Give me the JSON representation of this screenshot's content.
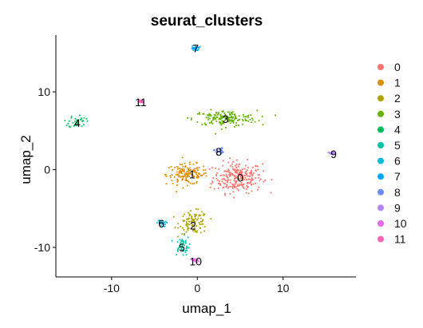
{
  "chart_data": {
    "type": "scatter",
    "title": "seurat_clusters",
    "xlabel": "umap_1",
    "ylabel": "umap_2",
    "xlim": [
      -16.5,
      18.5
    ],
    "ylim": [
      -13.8,
      17.3
    ],
    "xticks": [
      -10,
      0,
      10
    ],
    "yticks": [
      10,
      0,
      -10
    ],
    "xtick_labels": [
      "-10",
      "0",
      "10"
    ],
    "ytick_labels": [
      "10",
      "0",
      "-10"
    ],
    "grid": false,
    "legend_position": "right",
    "series": [
      {
        "name": "0",
        "color": "#F8766D",
        "label_pos": [
          5.0,
          -1.0
        ],
        "center": [
          4.7,
          -1.0
        ],
        "spread": [
          2.6,
          1.8
        ]
      },
      {
        "name": "1",
        "color": "#DB8E00",
        "label_pos": [
          -0.6,
          -0.6
        ],
        "center": [
          -1.2,
          -0.6
        ],
        "spread": [
          2.2,
          1.2
        ]
      },
      {
        "name": "2",
        "color": "#AEA200",
        "label_pos": [
          -0.5,
          -7.2
        ],
        "center": [
          -0.4,
          -6.8
        ],
        "spread": [
          1.5,
          1.3
        ]
      },
      {
        "name": "3",
        "color": "#64B200",
        "label_pos": [
          3.3,
          6.5
        ],
        "center": [
          3.2,
          6.6
        ],
        "spread": [
          3.4,
          0.9
        ]
      },
      {
        "name": "4",
        "color": "#00BD5C",
        "label_pos": [
          -14.0,
          6.0
        ],
        "center": [
          -14.0,
          6.2
        ],
        "spread": [
          0.9,
          0.8
        ]
      },
      {
        "name": "5",
        "color": "#00C1A7",
        "label_pos": [
          -1.8,
          -10.0
        ],
        "center": [
          -1.8,
          -9.8
        ],
        "spread": [
          0.8,
          1.1
        ]
      },
      {
        "name": "6",
        "color": "#00BADE",
        "label_pos": [
          -4.2,
          -6.9
        ],
        "center": [
          -4.2,
          -6.9
        ],
        "spread": [
          0.5,
          0.4
        ]
      },
      {
        "name": "7",
        "color": "#00A6FF",
        "label_pos": [
          -0.2,
          15.6
        ],
        "center": [
          -0.2,
          15.6
        ],
        "spread": [
          0.4,
          0.3
        ]
      },
      {
        "name": "8",
        "color": "#6D8CFF",
        "label_pos": [
          2.5,
          2.3
        ],
        "center": [
          2.5,
          2.4
        ],
        "spread": [
          0.5,
          0.4
        ]
      },
      {
        "name": "9",
        "color": "#B385FF",
        "label_pos": [
          15.9,
          2.0
        ],
        "center": [
          15.7,
          2.1
        ],
        "spread": [
          0.4,
          0.15
        ]
      },
      {
        "name": "10",
        "color": "#EF67EB",
        "label_pos": [
          -0.2,
          -11.8
        ],
        "center": [
          -0.2,
          -11.7
        ],
        "spread": [
          0.3,
          0.2
        ]
      },
      {
        "name": "11",
        "color": "#FF63B6",
        "label_pos": [
          -6.6,
          8.7
        ],
        "center": [
          -6.6,
          8.8
        ],
        "spread": [
          0.3,
          0.2
        ]
      }
    ]
  }
}
